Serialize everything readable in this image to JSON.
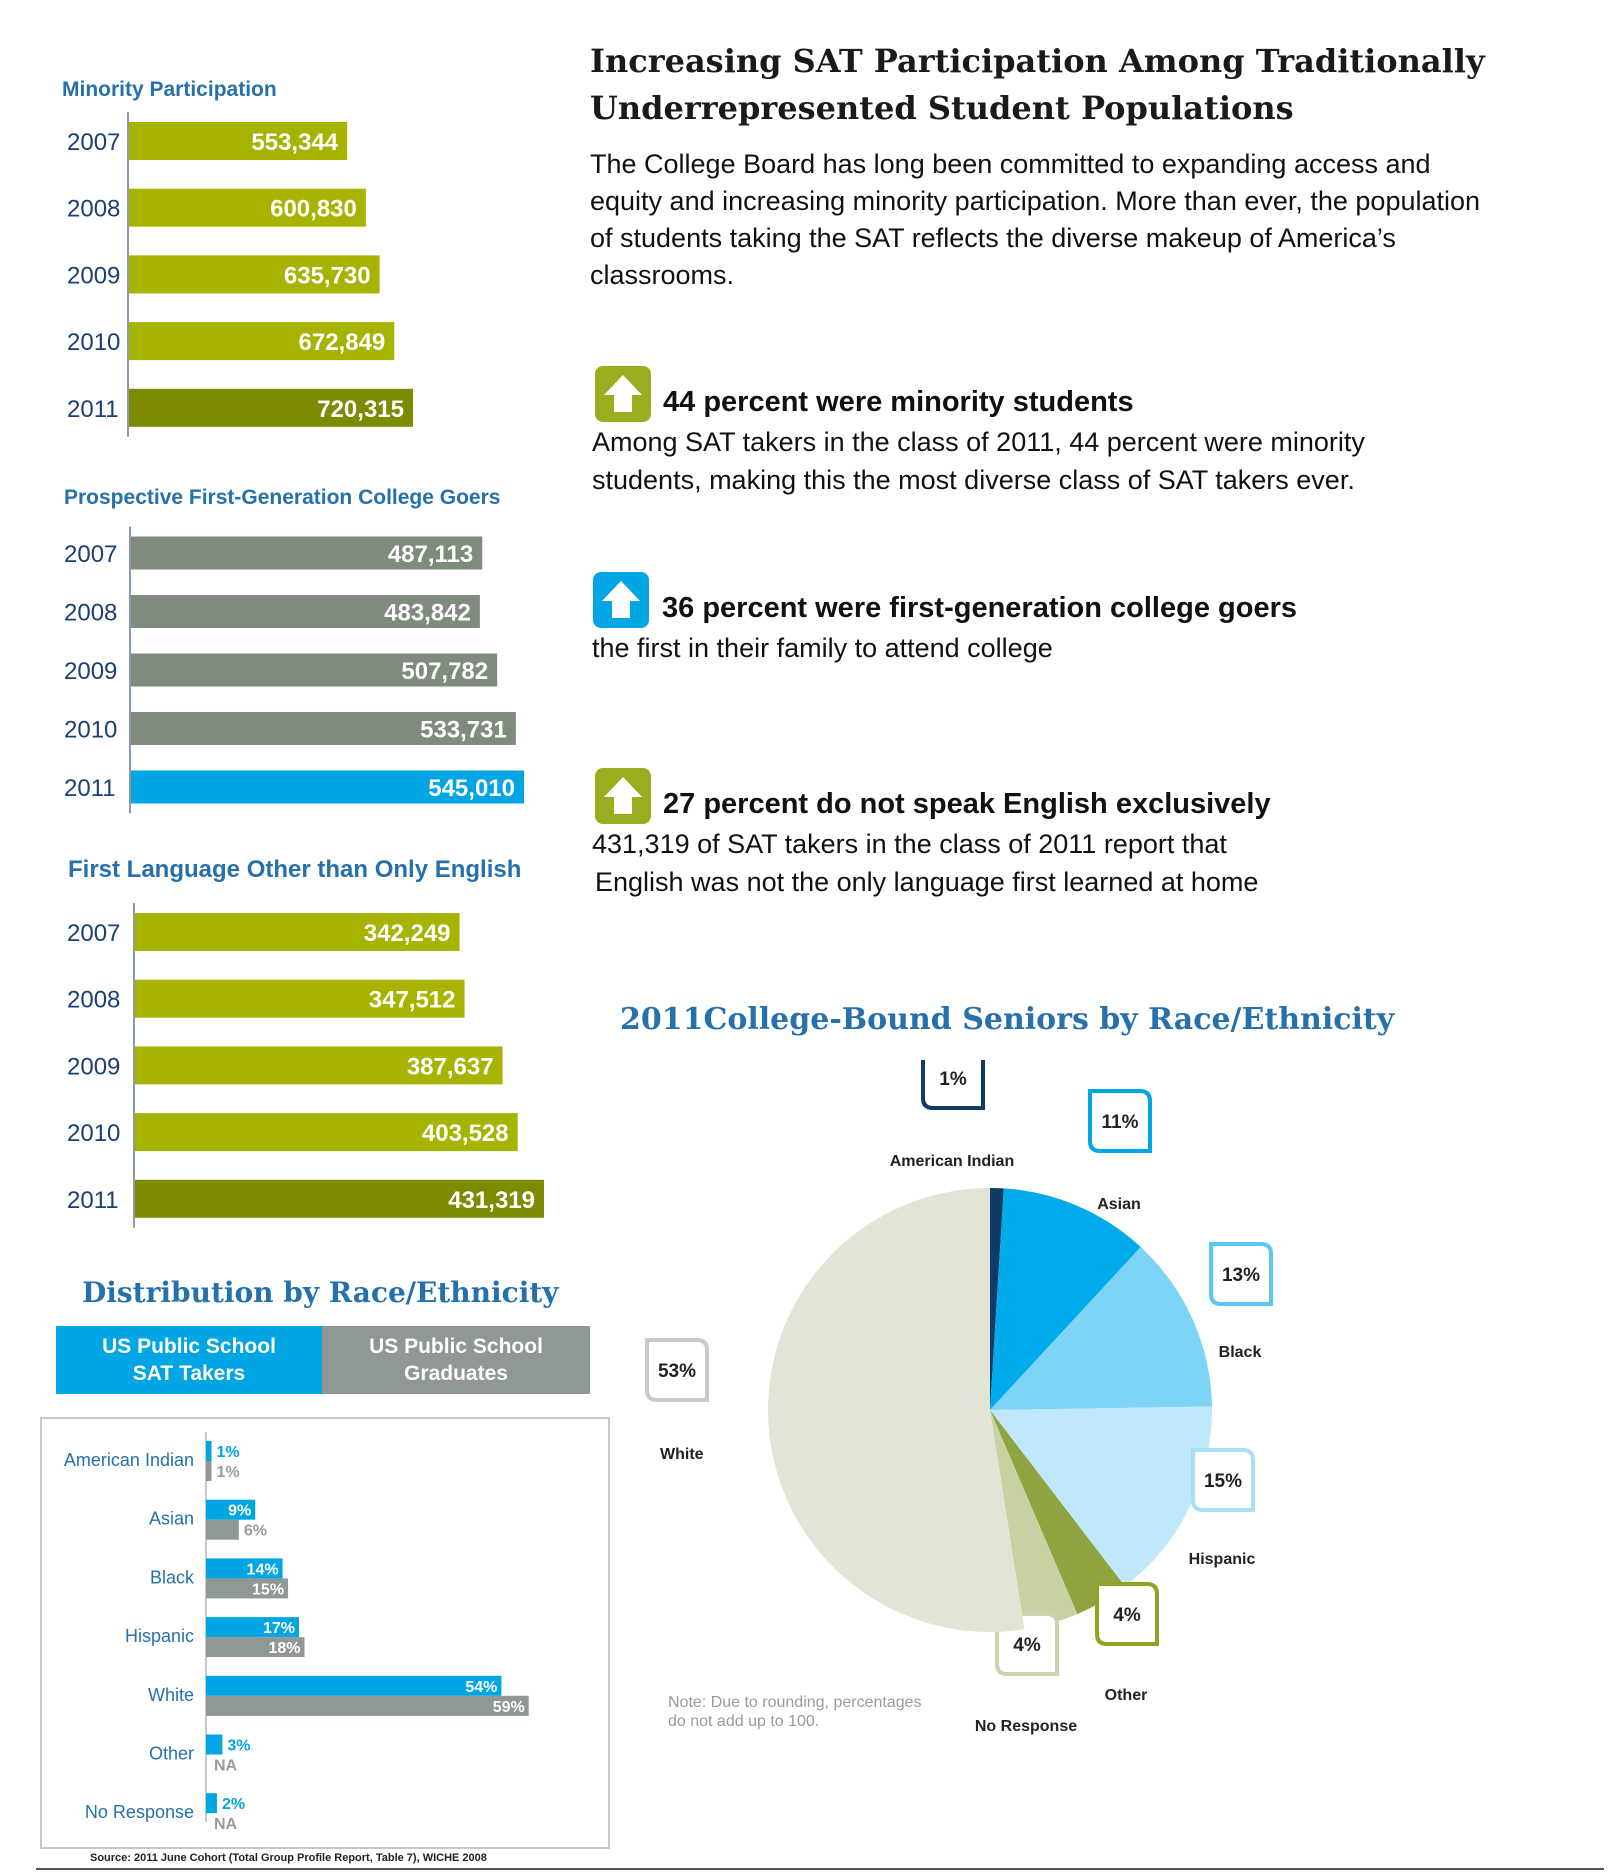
{
  "header": {
    "title_line1": "Increasing SAT Participation Among Traditionally",
    "title_line2": "Underrepresented Student Populations",
    "intro": "The College Board has long been committed to expanding access and equity and increasing minority participation. More than ever, the population of students taking the SAT reflects the diverse makeup of America’s classrooms."
  },
  "stats": [
    {
      "icon": "up-arrow-icon",
      "color": "#99AD1E",
      "title": "44 percent were minority students",
      "body_lines": [
        "Among SAT takers in the class of 2011, 44 percent were minority",
        "students, making this the most diverse class of SAT takers ever."
      ]
    },
    {
      "icon": "up-arrow-icon",
      "color": "#00A6E3",
      "title": "36 percent were first-generation college goers",
      "body_lines": [
        "the first in their family to attend college"
      ]
    },
    {
      "icon": "up-arrow-icon",
      "color": "#99AD1E",
      "title": "27 percent do not speak English exclusively",
      "body_lines": [
        "431,319 of SAT takers in the class of 2011 report that",
        "English was not the only language first learned at home"
      ]
    }
  ],
  "colors": {
    "olive": "#A6B400",
    "olive_dark": "#7E8A00",
    "gray_bar": "#7F8B7C",
    "blue": "#00A6E3",
    "title_blue": "#2670AC",
    "dist_gray": "#8F9892"
  },
  "chart_data": [
    {
      "type": "bar",
      "orientation": "horizontal",
      "title": "Minority Participation",
      "categories": [
        "2007",
        "2008",
        "2009",
        "2010",
        "2011"
      ],
      "values": [
        553344,
        600830,
        635730,
        672849,
        720315
      ],
      "value_labels": [
        "553,344",
        "600,830",
        "635,730",
        "672,849",
        "720,315"
      ],
      "highlight_index": 4
    },
    {
      "type": "bar",
      "orientation": "horizontal",
      "title": "Prospective First-Generation College Goers",
      "categories": [
        "2007",
        "2008",
        "2009",
        "2010",
        "2011"
      ],
      "values": [
        487113,
        483842,
        507782,
        533731,
        545010
      ],
      "value_labels": [
        "487,113",
        "483,842",
        "507,782",
        "533,731",
        "545,010"
      ],
      "highlight_index": 4
    },
    {
      "type": "bar",
      "orientation": "horizontal",
      "title": "First Language Other than Only English",
      "categories": [
        "2007",
        "2008",
        "2009",
        "2010",
        "2011"
      ],
      "values": [
        342249,
        347512,
        387637,
        403528,
        431319
      ],
      "value_labels": [
        "342,249",
        "347,512",
        "387,637",
        "403,528",
        "431,319"
      ],
      "highlight_index": 4
    },
    {
      "type": "bar",
      "orientation": "horizontal",
      "title": "Distribution by Race/Ethnicity",
      "legend": [
        "US Public School SAT Takers",
        "US Public School Graduates"
      ],
      "legend_lines": [
        [
          "US Public School",
          "SAT Takers"
        ],
        [
          "US Public School",
          "Graduates"
        ]
      ],
      "categories": [
        "American Indian",
        "Asian",
        "Black",
        "Hispanic",
        "White",
        "Other",
        "No Response"
      ],
      "series": [
        {
          "name": "US Public School SAT Takers",
          "values": [
            1,
            9,
            14,
            17,
            54,
            3,
            2
          ],
          "labels": [
            "1%",
            "9%",
            "14%",
            "17%",
            "54%",
            "3%",
            "2%"
          ]
        },
        {
          "name": "US Public School Graduates",
          "values": [
            1,
            6,
            15,
            18,
            59,
            null,
            null
          ],
          "labels": [
            "1%",
            "6%",
            "15%",
            "18%",
            "59%",
            "NA",
            "NA"
          ]
        }
      ],
      "source": "Source: 2011 June Cohort (Total Group Profile Report, Table 7), WICHE 2008"
    },
    {
      "type": "pie",
      "title": "2011College-Bound Seniors by Race/Ethnicity",
      "slices": [
        {
          "label": "American Indian",
          "value": 1,
          "display": "1%",
          "color": "#0F3B66"
        },
        {
          "label": "Asian",
          "value": 11,
          "display": "11%",
          "color": "#00ABEB"
        },
        {
          "label": "Black",
          "value": 13,
          "display": "13%",
          "color": "#7ED4F7"
        },
        {
          "label": "Hispanic",
          "value": 15,
          "display": "15%",
          "color": "#BFE8FA"
        },
        {
          "label": "Other",
          "value": 4,
          "display": "4%",
          "color": "#8FA440"
        },
        {
          "label": "No Response",
          "value": 4,
          "display": "4%",
          "color": "#C7D1A2"
        },
        {
          "label": "White",
          "value": 53,
          "display": "53%",
          "color": "#E2E5D5"
        }
      ],
      "note_lines": [
        "Note: Due to rounding, percentages",
        "do not add up to 100."
      ]
    }
  ]
}
